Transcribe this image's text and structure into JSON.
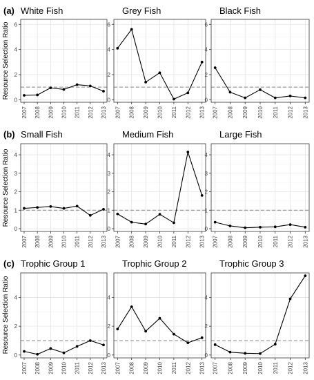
{
  "y_axis_label": "Resource Selection Ratio",
  "reference_line": 1,
  "chart_data": [
    {
      "type": "line",
      "row": "a",
      "row_label": "(a)",
      "title": "White Fish",
      "categories": [
        "2007",
        "2008",
        "2009",
        "2010",
        "2011",
        "2012",
        "2013"
      ],
      "values": [
        0.35,
        0.38,
        0.95,
        0.82,
        1.2,
        1.1,
        0.68
      ],
      "ylim": [
        -0.2,
        6.4
      ],
      "yticks": [
        0,
        2,
        4,
        6
      ],
      "grid": true,
      "show_y_tick_labels": true
    },
    {
      "type": "line",
      "row": "a",
      "row_label": "",
      "title": "Grey Fish",
      "categories": [
        "2007",
        "2008",
        "2009",
        "2010",
        "2011",
        "2012",
        "2013"
      ],
      "values": [
        4.1,
        5.6,
        1.4,
        2.15,
        0.05,
        0.55,
        3.0
      ],
      "ylim": [
        -0.2,
        6.4
      ],
      "yticks": [
        0,
        2,
        4,
        6
      ],
      "grid": true,
      "show_y_tick_labels": true
    },
    {
      "type": "line",
      "row": "a",
      "row_label": "",
      "title": "Black Fish",
      "categories": [
        "2007",
        "2008",
        "2009",
        "2010",
        "2011",
        "2012",
        "2013"
      ],
      "values": [
        2.55,
        0.6,
        0.15,
        0.8,
        0.15,
        0.3,
        0.15
      ],
      "ylim": [
        -0.2,
        6.4
      ],
      "yticks": [
        0,
        2,
        4,
        6
      ],
      "grid": true,
      "show_y_tick_labels": true
    },
    {
      "type": "line",
      "row": "b",
      "row_label": "(b)",
      "title": "Small Fish",
      "categories": [
        "2007",
        "2008",
        "2009",
        "2010",
        "2011",
        "2012",
        "2013"
      ],
      "values": [
        1.1,
        1.15,
        1.2,
        1.1,
        1.22,
        0.72,
        1.05
      ],
      "ylim": [
        -0.15,
        4.6
      ],
      "yticks": [
        0,
        1,
        2,
        3,
        4
      ],
      "grid": true,
      "show_y_tick_labels": true
    },
    {
      "type": "line",
      "row": "b",
      "row_label": "",
      "title": "Medium Fish",
      "categories": [
        "2007",
        "2008",
        "2009",
        "2010",
        "2011",
        "2012",
        "2013"
      ],
      "values": [
        0.8,
        0.35,
        0.25,
        0.78,
        0.32,
        4.15,
        1.8
      ],
      "ylim": [
        -0.15,
        4.6
      ],
      "yticks": [
        0,
        1,
        2,
        3,
        4
      ],
      "grid": true,
      "show_y_tick_labels": true
    },
    {
      "type": "line",
      "row": "b",
      "row_label": "",
      "title": "Large Fish",
      "categories": [
        "2007",
        "2008",
        "2009",
        "2010",
        "2011",
        "2012",
        "2013"
      ],
      "values": [
        0.35,
        0.15,
        0.05,
        0.08,
        0.1,
        0.22,
        0.08
      ],
      "ylim": [
        -0.15,
        4.6
      ],
      "yticks": [
        0,
        1,
        2,
        3,
        4
      ],
      "grid": true,
      "show_y_tick_labels": true
    },
    {
      "type": "line",
      "row": "c",
      "row_label": "(c)",
      "title": "Trophic Group 1",
      "categories": [
        "2007",
        "2008",
        "2009",
        "2010",
        "2011",
        "2012",
        "2013"
      ],
      "values": [
        0.25,
        0.05,
        0.45,
        0.15,
        0.6,
        1.0,
        0.7
      ],
      "ylim": [
        -0.2,
        5.7
      ],
      "yticks": [
        0,
        2,
        4
      ],
      "grid": true,
      "show_y_tick_labels": true
    },
    {
      "type": "line",
      "row": "c",
      "row_label": "",
      "title": "Trophic Group 2",
      "categories": [
        "2007",
        "2008",
        "2009",
        "2010",
        "2011",
        "2012",
        "2013"
      ],
      "values": [
        1.8,
        3.35,
        1.65,
        2.55,
        1.45,
        0.85,
        1.2
      ],
      "ylim": [
        -0.2,
        5.7
      ],
      "yticks": [
        0,
        2,
        4
      ],
      "grid": true,
      "show_y_tick_labels": true
    },
    {
      "type": "line",
      "row": "c",
      "row_label": "",
      "title": "Trophic Group 3",
      "categories": [
        "2007",
        "2008",
        "2009",
        "2010",
        "2011",
        "2012",
        "2013"
      ],
      "values": [
        0.72,
        0.2,
        0.12,
        0.1,
        0.75,
        3.9,
        5.5
      ],
      "ylim": [
        -0.2,
        5.7
      ],
      "yticks": [
        0,
        2,
        4
      ],
      "grid": true,
      "show_y_tick_labels": true
    }
  ]
}
